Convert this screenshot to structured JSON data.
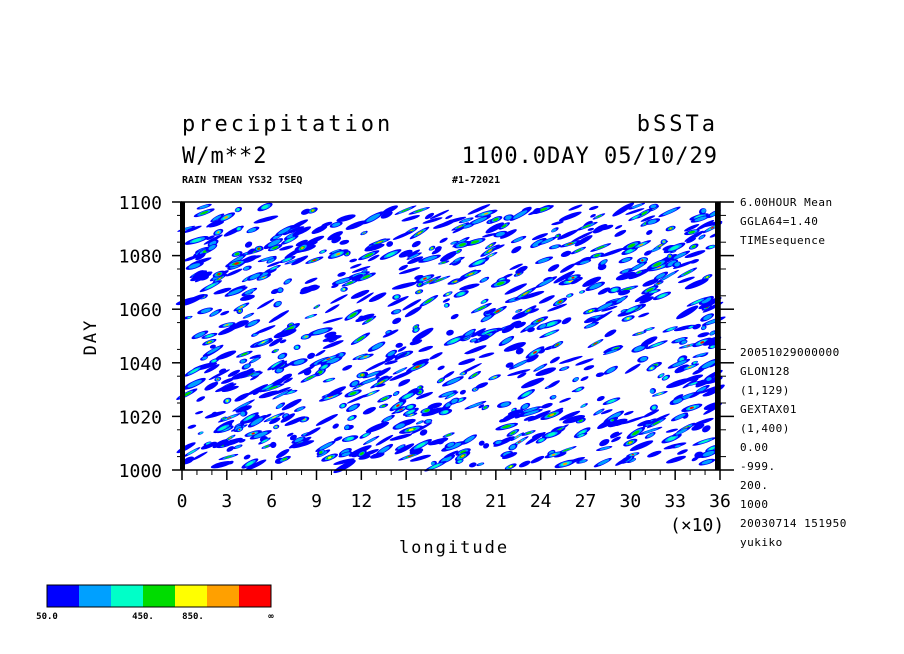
{
  "header": {
    "title_left": "precipitation",
    "title_right": "bSSTa",
    "units": "W/m**2",
    "time_label": "1100.0DAY 05/10/29",
    "run_label": "RAIN TMEAN YS32 TSEQ",
    "run_id": "#1-72021"
  },
  "chart_data": {
    "type": "heatmap",
    "xlabel": "longitude",
    "ylabel": "DAY",
    "x_tick_labels": [
      "0",
      "3",
      "6",
      "9",
      "12",
      "15",
      "18",
      "21",
      "24",
      "27",
      "30",
      "33",
      "36"
    ],
    "x_multiplier": "(×10)",
    "y_tick_labels": [
      "1000",
      "1020",
      "1040",
      "1060",
      "1080",
      "1100"
    ],
    "xlim": [
      0,
      360
    ],
    "ylim": [
      1000,
      1100
    ],
    "colorbar": {
      "colors": [
        "#0000ff",
        "#00a0ff",
        "#00ffc8",
        "#00dc00",
        "#ffff00",
        "#ffa000",
        "#ff0000"
      ],
      "labels": [
        "50.0",
        "450.",
        "850.",
        "∞"
      ]
    },
    "description_pattern": "westward-tilted precipitation streaks"
  },
  "side_info": {
    "top": [
      "6.00HOUR Mean",
      "GGLA64=1.40",
      "TIMEsequence"
    ],
    "bottom": [
      "20051029000000",
      "GLON128",
      "(1,129)",
      "GEXTAX01",
      "(1,400)",
      "0.00",
      "-999.",
      "200.",
      "1000",
      "20030714 151950",
      "yukiko"
    ]
  },
  "colors": {
    "frame": "#000000",
    "background": "#ffffff"
  }
}
